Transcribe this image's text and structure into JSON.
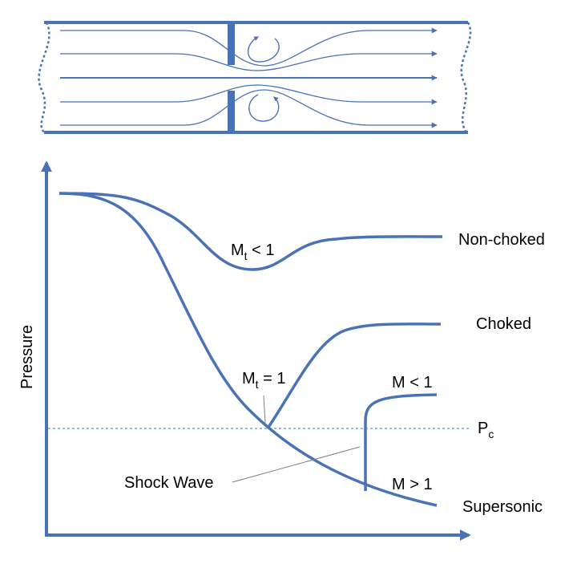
{
  "colors": {
    "line": "#4a72b6",
    "text": "#000000",
    "background": "#ffffff"
  },
  "pipe": {
    "streamlines": 5,
    "vortex_count": 2
  },
  "axes": {
    "ylabel": "Pressure",
    "xlabel": ""
  },
  "curves": {
    "non_choked": {
      "label": "Non-choked",
      "annotation": {
        "base": "M",
        "sub": "t",
        "rest": " < 1"
      }
    },
    "choked": {
      "label": "Choked",
      "annotation": {
        "base": "M",
        "sub": "t",
        "rest": " = 1"
      }
    },
    "supersonic": {
      "label": "Supersonic",
      "annotation": "M > 1"
    },
    "post_shock": {
      "annotation": "M < 1"
    }
  },
  "critical_pressure": {
    "base": "P",
    "sub": "c"
  },
  "shock": {
    "label": "Shock Wave"
  }
}
